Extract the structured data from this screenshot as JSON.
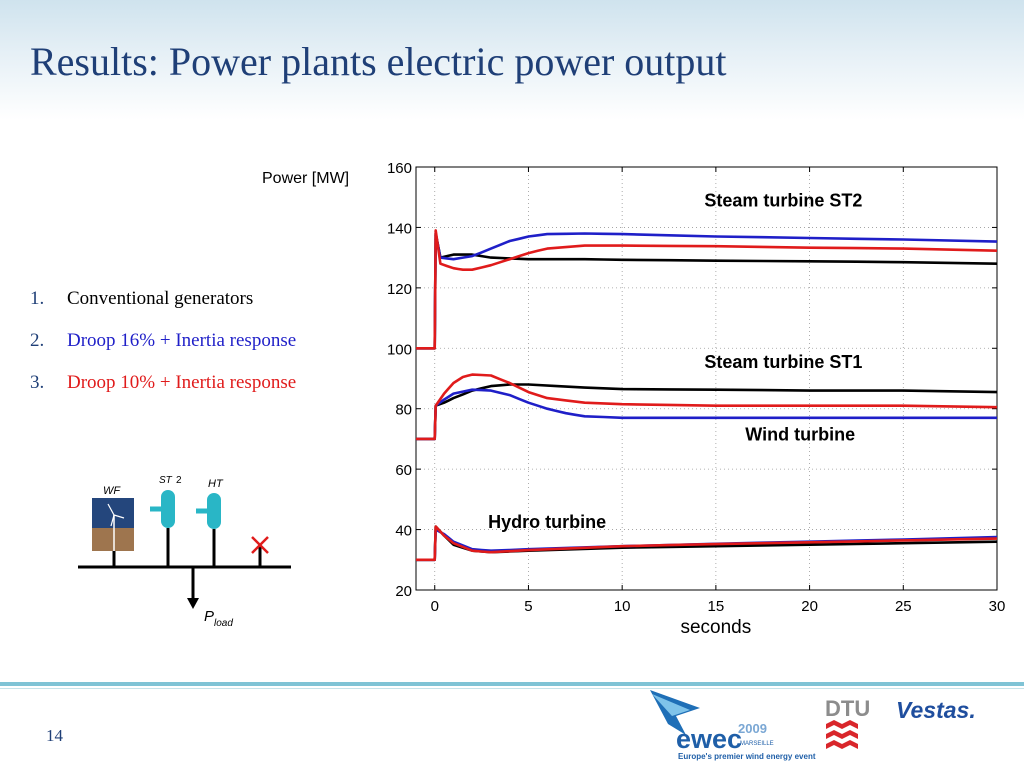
{
  "slide": {
    "title": "Results: Power plants electric power output",
    "page_number": "14"
  },
  "legend_list": [
    {
      "number": "1.",
      "label": "Conventional generators",
      "color": "#000000"
    },
    {
      "number": "2.",
      "label": "Droop 16% + Inertia response",
      "color": "#1f1fc8"
    },
    {
      "number": "3.",
      "label": "Droop 10% + Inertia response",
      "color": "#e01b1b"
    }
  ],
  "diagram": {
    "wf_label": "WF",
    "st_label": "ST",
    "st_sub": "2",
    "ht_label": "HT",
    "pload_label": "P",
    "pload_sub": "load"
  },
  "logos": {
    "ewec_text": "ewec",
    "ewec_year": "2009",
    "ewec_city": "MARSEILLE",
    "ewec_tagline": "Europe's premier wind energy event",
    "dtu_text": "DTU",
    "vestas_text": "Vestas."
  },
  "colors": {
    "title": "#1f3f77",
    "conventional": "#000000",
    "droop16": "#1f1fc8",
    "droop10": "#e01b1b",
    "accent_line": "#7fc3d5"
  },
  "chart_data": {
    "type": "line",
    "title": "",
    "xlabel": "seconds",
    "ylabel": "Power [MW]",
    "xlim": [
      -1,
      30
    ],
    "ylim": [
      20,
      160
    ],
    "xticks": [
      0,
      5,
      10,
      15,
      20,
      25,
      30
    ],
    "yticks": [
      20,
      40,
      60,
      80,
      100,
      120,
      140,
      160
    ],
    "grid": true,
    "annotations": [
      {
        "text": "Steam turbine ST2",
        "x": 18.6,
        "y": 147
      },
      {
        "text": "Steam turbine ST1",
        "x": 18.6,
        "y": 93.5
      },
      {
        "text": "Wind turbine",
        "x": 19.5,
        "y": 69.5
      },
      {
        "text": "Hydro turbine",
        "x": 6,
        "y": 40.5
      }
    ],
    "series": [
      {
        "group": "ST2",
        "variant": "Conventional generators",
        "color": "#000000",
        "x": [
          -1,
          0,
          0.05,
          0.3,
          1,
          2,
          3,
          5,
          8,
          10,
          15,
          20,
          25,
          30
        ],
        "y": [
          100,
          100,
          138,
          130,
          131,
          131,
          130,
          129.5,
          129.5,
          129.3,
          129,
          128.8,
          128.5,
          128
        ]
      },
      {
        "group": "ST2",
        "variant": "Droop 16% + Inertia response",
        "color": "#1f1fc8",
        "x": [
          -1,
          0,
          0.05,
          0.3,
          1,
          2,
          3,
          4,
          5,
          6,
          8,
          10,
          15,
          20,
          25,
          30
        ],
        "y": [
          100,
          100,
          138,
          130,
          129.5,
          130.5,
          133,
          135.5,
          137,
          137.8,
          138,
          137.8,
          137,
          136.5,
          136,
          135.3
        ]
      },
      {
        "group": "ST2",
        "variant": "Droop 10% + Inertia response",
        "color": "#e01b1b",
        "x": [
          -1,
          0,
          0.05,
          0.3,
          1,
          1.5,
          2,
          3,
          4,
          5,
          6,
          8,
          10,
          15,
          20,
          25,
          30
        ],
        "y": [
          100,
          100,
          139,
          128,
          126.5,
          126,
          126,
          127.5,
          129.5,
          131.5,
          133,
          134,
          134,
          133.8,
          133.3,
          133,
          132.3
        ]
      },
      {
        "group": "ST1",
        "variant": "Conventional generators",
        "color": "#000000",
        "x": [
          -1,
          0,
          0.05,
          0.5,
          1,
          2,
          3,
          4,
          5,
          8,
          10,
          15,
          20,
          25,
          30
        ],
        "y": [
          70,
          70,
          81,
          82,
          83.5,
          86,
          87.5,
          88,
          88,
          87,
          86.5,
          86.3,
          86,
          86,
          85.5
        ]
      },
      {
        "group": "ST1",
        "variant": "Droop 16% + Inertia response",
        "color": "#1f1fc8",
        "x": [
          -1,
          0,
          0.05,
          0.5,
          1,
          2,
          3,
          4,
          5,
          6,
          7,
          8,
          10,
          15,
          20,
          25,
          30
        ],
        "y": [
          70,
          70,
          81,
          83,
          85,
          86.3,
          86,
          84.5,
          82,
          80,
          78.5,
          77.5,
          77,
          77,
          77,
          77,
          77
        ]
      },
      {
        "group": "ST1",
        "variant": "Droop 10% + Inertia response",
        "color": "#e01b1b",
        "x": [
          -1,
          0,
          0.05,
          0.5,
          1,
          1.5,
          2,
          3,
          4,
          5,
          6,
          8,
          10,
          15,
          20,
          25,
          30
        ],
        "y": [
          70,
          70,
          81,
          85,
          88.5,
          90.5,
          91.3,
          91,
          88.5,
          85.5,
          83.5,
          82,
          81.5,
          81,
          81,
          81,
          80.5
        ]
      },
      {
        "group": "Hydro",
        "variant": "Conventional generators",
        "color": "#000000",
        "x": [
          -1,
          0,
          0.05,
          0.5,
          1,
          2,
          3,
          5,
          10,
          15,
          20,
          25,
          30
        ],
        "y": [
          30,
          30,
          41,
          38,
          35,
          33,
          32.5,
          33,
          34,
          34.5,
          35,
          35.5,
          36
        ]
      },
      {
        "group": "Hydro",
        "variant": "Droop 16% + Inertia response",
        "color": "#1f1fc8",
        "x": [
          -1,
          0,
          0.05,
          0.5,
          1,
          2,
          3,
          5,
          10,
          15,
          20,
          25,
          30
        ],
        "y": [
          30,
          30,
          40,
          38.5,
          36,
          33.5,
          33,
          33.5,
          34.5,
          35.3,
          36,
          36.7,
          37.5
        ]
      },
      {
        "group": "Hydro",
        "variant": "Droop 10% + Inertia response",
        "color": "#e01b1b",
        "x": [
          -1,
          0,
          0.05,
          0.5,
          1,
          2,
          3,
          5,
          10,
          15,
          20,
          25,
          30
        ],
        "y": [
          30,
          30,
          41,
          38,
          35.5,
          33,
          32.5,
          33.2,
          34.5,
          35.2,
          35.8,
          36.4,
          37
        ]
      }
    ]
  }
}
